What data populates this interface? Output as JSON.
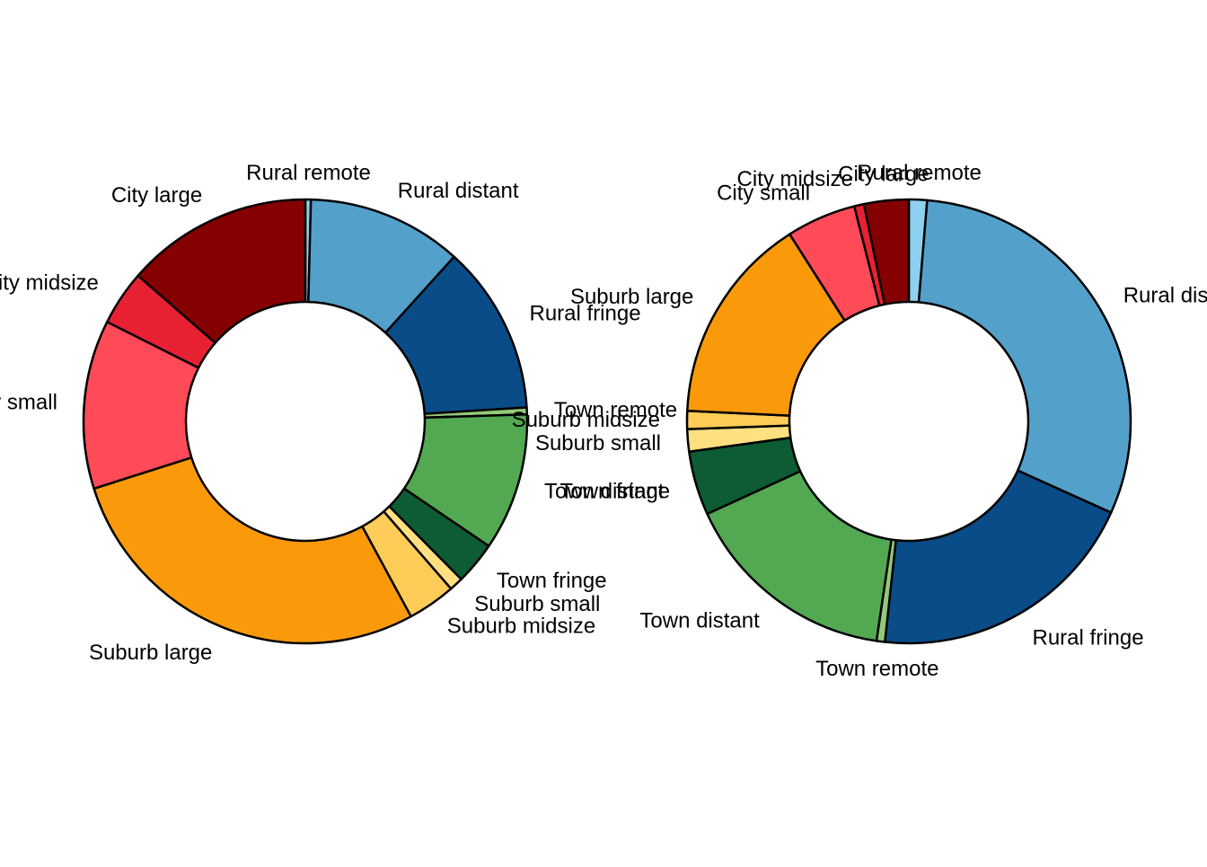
{
  "chart_data": [
    {
      "type": "pie",
      "variant": "donut",
      "start": "top",
      "direction": "clockwise",
      "slices": [
        {
          "label": "Rural remote",
          "value": 0.4,
          "color": "#8ed0f0"
        },
        {
          "label": "Rural distant",
          "value": 11.3,
          "color": "#53a1cb"
        },
        {
          "label": "Rural fringe",
          "value": 12.3,
          "color": "#0a4c87"
        },
        {
          "label": "Town remote",
          "value": 0.5,
          "color": "#93c97a"
        },
        {
          "label": "Town distant",
          "value": 10.0,
          "color": "#53a852"
        },
        {
          "label": "Town fringe",
          "value": 3.1,
          "color": "#0d5c33"
        },
        {
          "label": "Suburb small",
          "value": 1.0,
          "color": "#ffe080"
        },
        {
          "label": "Suburb midsize",
          "value": 3.5,
          "color": "#ffcc57"
        },
        {
          "label": "Suburb large",
          "value": 28.0,
          "color": "#fa9a0a"
        },
        {
          "label": "City small",
          "value": 12.3,
          "color": "#ff4a57"
        },
        {
          "label": "City midsize",
          "value": 4.0,
          "color": "#e82132"
        },
        {
          "label": "City large",
          "value": 13.6,
          "color": "#850000"
        }
      ]
    },
    {
      "type": "pie",
      "variant": "donut",
      "start": "top",
      "direction": "clockwise",
      "slices": [
        {
          "label": "Rural remote",
          "value": 1.3,
          "color": "#8ed0f0"
        },
        {
          "label": "Rural distant",
          "value": 30.0,
          "color": "#53a1cb"
        },
        {
          "label": "Rural fringe",
          "value": 19.7,
          "color": "#0a4c87"
        },
        {
          "label": "Town remote",
          "value": 0.6,
          "color": "#93c97a"
        },
        {
          "label": "Town distant",
          "value": 15.6,
          "color": "#53a852"
        },
        {
          "label": "Town fringe",
          "value": 4.6,
          "color": "#0d5c33"
        },
        {
          "label": "Suburb small",
          "value": 1.6,
          "color": "#ffe080"
        },
        {
          "label": "Suburb midsize",
          "value": 1.3,
          "color": "#ffcc57"
        },
        {
          "label": "Suburb large",
          "value": 15.0,
          "color": "#fa9a0a"
        },
        {
          "label": "City small",
          "value": 5.0,
          "color": "#ff4a57"
        },
        {
          "label": "City midsize",
          "value": 0.7,
          "color": "#e82132"
        },
        {
          "label": "City large",
          "value": 3.2,
          "color": "#850000"
        }
      ]
    }
  ]
}
